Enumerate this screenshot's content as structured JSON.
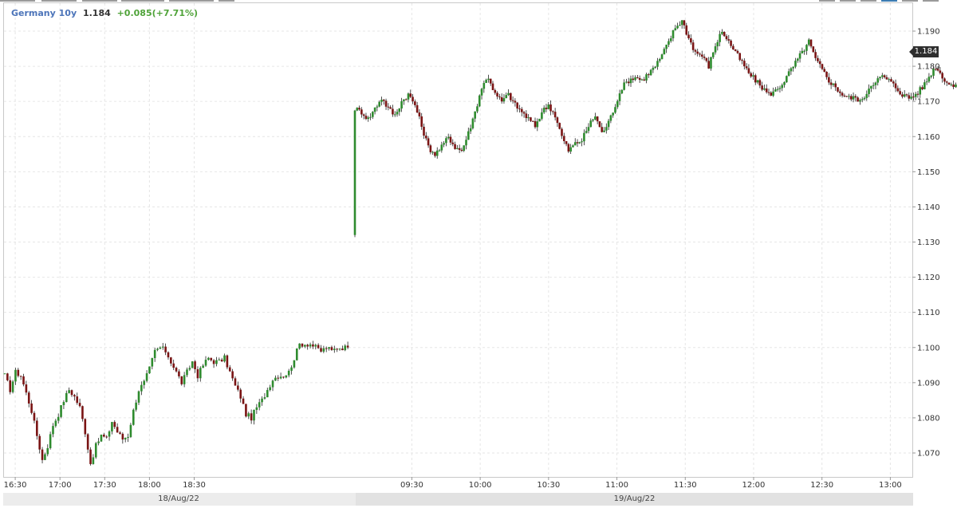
{
  "header": {
    "symbol": "Germany 10y",
    "last": "1.184",
    "change": "+0.085(+7.71%)"
  },
  "last_price_badge": "1.184",
  "colors": {
    "up": "#2e8b2e",
    "down": "#7a1414",
    "wick": "#222222",
    "grid": "#e6e6e6",
    "axis_text": "#333333"
  },
  "chart_data": {
    "type": "candlestick",
    "title": "Germany 10y",
    "ylim": [
      1.063,
      1.194
    ],
    "y_ticks": [
      "1.070",
      "1.080",
      "1.090",
      "1.100",
      "1.110",
      "1.120",
      "1.130",
      "1.140",
      "1.150",
      "1.160",
      "1.170",
      "1.180",
      "1.190"
    ],
    "x_ticks": [
      "16:30",
      "17:00",
      "17:30",
      "18:00",
      "18:30",
      "09:30",
      "10:00",
      "10:30",
      "11:00",
      "11:30",
      "12:00",
      "12:30",
      "13:00"
    ],
    "date_labels": [
      "18/Aug/22",
      "19/Aug/22"
    ],
    "grid": true,
    "sessions": [
      {
        "date": "18/Aug/22",
        "start_time": "16:23",
        "interval_minutes": 1,
        "close_path": [
          1.092,
          1.088,
          1.093,
          1.092,
          1.087,
          1.082,
          1.075,
          1.068,
          1.072,
          1.078,
          1.081,
          1.085,
          1.088,
          1.086,
          1.083,
          1.076,
          1.067,
          1.072,
          1.075,
          1.074,
          1.079,
          1.076,
          1.074,
          1.075,
          1.082,
          1.088,
          1.09,
          1.094,
          1.099,
          1.1,
          1.099,
          1.096,
          1.093,
          1.09,
          1.093,
          1.096,
          1.092,
          1.095,
          1.097,
          1.096,
          1.096,
          1.097,
          1.093,
          1.089,
          1.086,
          1.081,
          1.08,
          1.083,
          1.085,
          1.088,
          1.091,
          1.092,
          1.092,
          1.093,
          1.097,
          1.101,
          1.101,
          1.101,
          1.1,
          1.099,
          1.1,
          1.099,
          1.1,
          1.1,
          1.1
        ]
      },
      {
        "date": "19/Aug/22",
        "start_time": "09:05",
        "interval_minutes": 1,
        "open": 1.132,
        "close_path": [
          1.168,
          1.167,
          1.165,
          1.168,
          1.171,
          1.168,
          1.166,
          1.17,
          1.172,
          1.169,
          1.163,
          1.157,
          1.155,
          1.157,
          1.16,
          1.157,
          1.156,
          1.161,
          1.167,
          1.174,
          1.177,
          1.172,
          1.17,
          1.172,
          1.169,
          1.167,
          1.165,
          1.163,
          1.167,
          1.169,
          1.166,
          1.16,
          1.156,
          1.158,
          1.159,
          1.163,
          1.166,
          1.161,
          1.164,
          1.169,
          1.174,
          1.176,
          1.177,
          1.176,
          1.178,
          1.18,
          1.183,
          1.187,
          1.191,
          1.193,
          1.188,
          1.184,
          1.183,
          1.18,
          1.186,
          1.19,
          1.187,
          1.184,
          1.181,
          1.178,
          1.176,
          1.174,
          1.172,
          1.173,
          1.175,
          1.178,
          1.181,
          1.184,
          1.187,
          1.182,
          1.179,
          1.176,
          1.174,
          1.172,
          1.171,
          1.171,
          1.17,
          1.174,
          1.176,
          1.177,
          1.176,
          1.174,
          1.172,
          1.171,
          1.172,
          1.174,
          1.177,
          1.18,
          1.177,
          1.175,
          1.174,
          1.174,
          1.176,
          1.177,
          1.18,
          1.182,
          1.184,
          1.183,
          1.181,
          1.183,
          1.184
        ]
      }
    ]
  }
}
